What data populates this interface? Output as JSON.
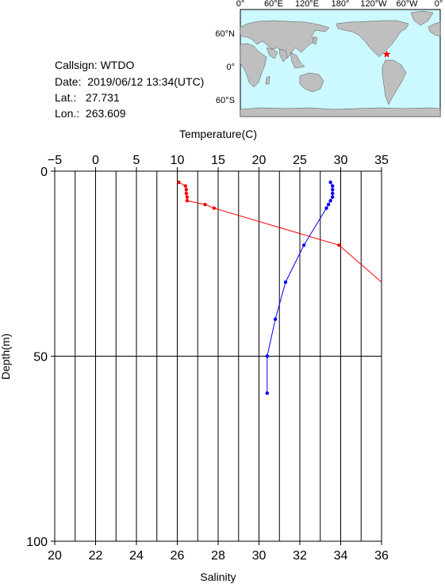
{
  "station": {
    "callsign_label": "Callsign:",
    "callsign": "WTDO",
    "date_label": "Date:",
    "date": "2019/06/12 13:34(UTC)",
    "lat_label": "Lat.:",
    "lat": "27.731",
    "lon_label": "Lon.:",
    "lon": "263.609"
  },
  "map": {
    "top_ticks": [
      "0°",
      "60°E",
      "120°E",
      "180°",
      "120°W",
      "60°W",
      "0°"
    ],
    "left_ticks": [
      "60°N",
      "0°",
      "60°S"
    ],
    "ocean_color": "#ccf8ff",
    "land_color": "#bfbfbf",
    "marker_color": "#ff0000",
    "marker": {
      "lon": 263.609,
      "lat": 27.731
    }
  },
  "chart_data": {
    "type": "line",
    "depth_axis": {
      "label": "Depth(m)",
      "range": [
        0,
        100
      ],
      "ticks": [
        "0",
        "50",
        "100"
      ]
    },
    "temperature_axis": {
      "label": "Temperature(C)",
      "range": [
        -5,
        35
      ],
      "ticks": [
        "−5",
        "0",
        "5",
        "10",
        "15",
        "20",
        "25",
        "30",
        "35"
      ]
    },
    "salinity_axis": {
      "label": "Salinity",
      "range": [
        20,
        36
      ],
      "ticks": [
        "20",
        "22",
        "24",
        "26",
        "28",
        "30",
        "32",
        "34",
        "36"
      ]
    },
    "grid": true,
    "series": [
      {
        "variable": "temperature",
        "color": "#ff0000",
        "points": [
          {
            "value": 10.2,
            "depth": 3
          },
          {
            "value": 11.0,
            "depth": 4
          },
          {
            "value": 11.1,
            "depth": 5
          },
          {
            "value": 11.1,
            "depth": 6
          },
          {
            "value": 11.2,
            "depth": 7
          },
          {
            "value": 11.2,
            "depth": 8
          },
          {
            "value": 13.4,
            "depth": 9
          },
          {
            "value": 14.5,
            "depth": 10
          },
          {
            "value": 29.8,
            "depth": 20
          },
          {
            "value": 35.0,
            "depth": 30
          }
        ]
      },
      {
        "variable": "salinity",
        "color": "#0000ff",
        "points": [
          {
            "value": 33.5,
            "depth": 3
          },
          {
            "value": 33.6,
            "depth": 4
          },
          {
            "value": 33.6,
            "depth": 5
          },
          {
            "value": 33.6,
            "depth": 6
          },
          {
            "value": 33.6,
            "depth": 7
          },
          {
            "value": 33.5,
            "depth": 8
          },
          {
            "value": 33.4,
            "depth": 9
          },
          {
            "value": 33.3,
            "depth": 10
          },
          {
            "value": 32.2,
            "depth": 20
          },
          {
            "value": 31.3,
            "depth": 30
          },
          {
            "value": 30.8,
            "depth": 40
          },
          {
            "value": 30.4,
            "depth": 50
          },
          {
            "value": 30.4,
            "depth": 60
          }
        ]
      }
    ]
  }
}
